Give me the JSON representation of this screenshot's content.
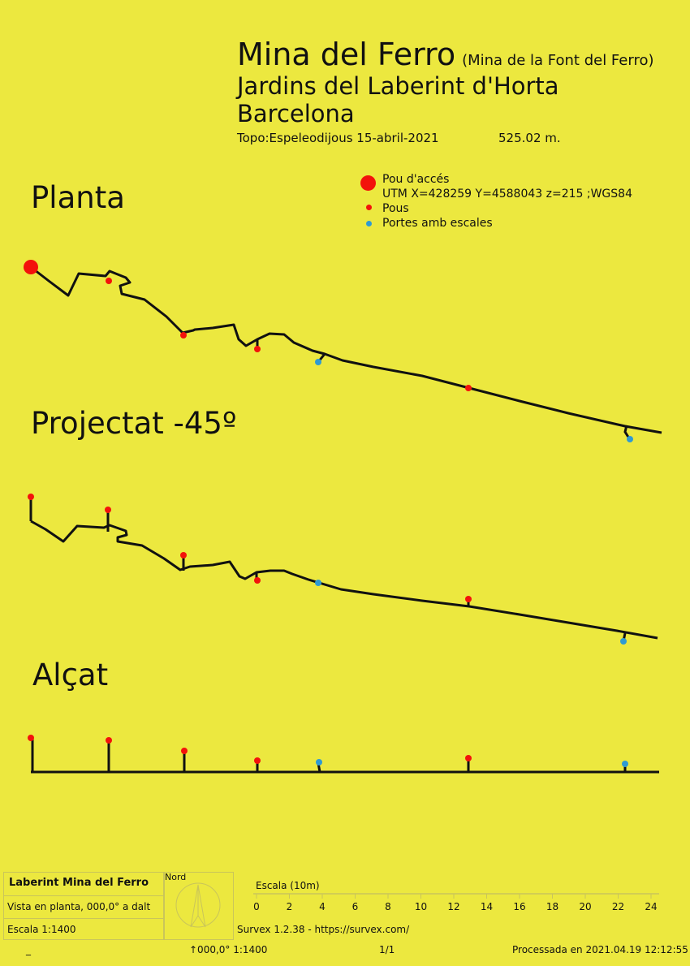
{
  "header": {
    "title": "Mina del Ferro",
    "title_alt": "(Mina de la Font del Ferro)",
    "subtitle": "Jardins del Laberint d'Horta",
    "city": "Barcelona",
    "credits": "Topo:Espeleodijous 15-abril-2021",
    "length": "525.02 m."
  },
  "sections": {
    "plan": "Planta",
    "projected": "Projectat -45º",
    "elevation": "Alçat"
  },
  "legend": {
    "access": "Pou d'accés",
    "utm": "UTM X=428259 Y=4588043 z=215 ;WGS84",
    "pous": "Pous",
    "portes": "Portes amb escales"
  },
  "colors": {
    "background": "#ece83f",
    "access": "#f3120b",
    "pous": "#f3120b",
    "portes": "#2f9ad2",
    "passage": "#111111"
  },
  "footer": {
    "name": "Laberint Mina del Ferro",
    "view": "Vista en planta, 000,0° a dalt",
    "scale": "Escala 1:1400",
    "nord": "Nord",
    "scale_bar_label": "Escala (10m)",
    "scale_ticks": [
      "0",
      "2",
      "4",
      "6",
      "8",
      "10",
      "12",
      "14",
      "16",
      "18",
      "20",
      "22",
      "24"
    ],
    "software": "Survex 1.2.38 - https://survex.com/"
  },
  "bottom": {
    "left": "_",
    "orientation": "↑000,0° 1:1400",
    "page": "1/1",
    "processed": "Processada en 2021.04.19 12:12:55"
  }
}
